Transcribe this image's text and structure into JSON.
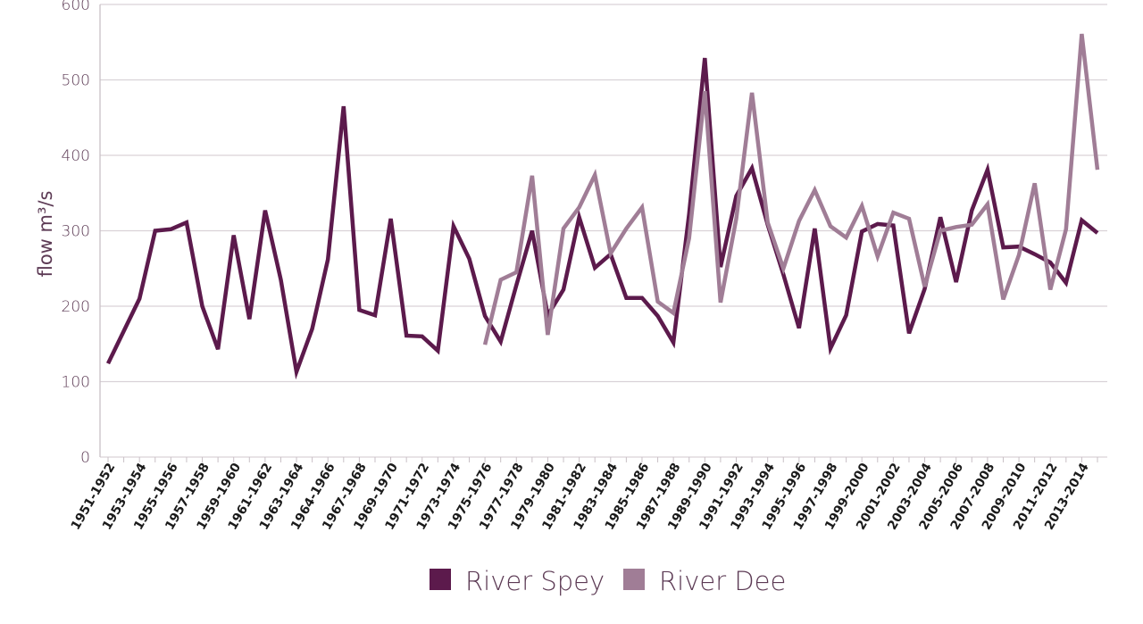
{
  "chart_data": {
    "type": "line",
    "title": "",
    "xlabel": "",
    "ylabel": "flow m³/s",
    "ylim": [
      0,
      600
    ],
    "yticks": [
      0,
      100,
      200,
      300,
      400,
      500,
      600
    ],
    "grid": "horizontal",
    "legend_position": "bottom-center",
    "x": [
      "1951-1952",
      "1952-1953",
      "1953-1954",
      "1954-1955",
      "1955-1956",
      "1956-1957",
      "1957-1958",
      "1958-1959",
      "1959-1960",
      "1960-1961",
      "1961-1962",
      "1962-1963",
      "1963-1964",
      "1964-1965",
      "1964-1966",
      "1966-1967",
      "1967-1968",
      "1968-1969",
      "1969-1970",
      "1970-1971",
      "1971-1972",
      "1972-1973",
      "1973-1974",
      "1974-1975",
      "1975-1976",
      "1976-1977",
      "1977-1978",
      "1978-1979",
      "1979-1980",
      "1980-1981",
      "1981-1982",
      "1982-1983",
      "1983-1984",
      "1984-1985",
      "1985-1986",
      "1986-1987",
      "1987-1988",
      "1988-1989",
      "1989-1990",
      "1990-1991",
      "1991-1992",
      "1992-1993",
      "1993-1994",
      "1994-1995",
      "1995-1996",
      "1996-1997",
      "1997-1998",
      "1998-1999",
      "1999-2000",
      "2000-2001",
      "2001-2002",
      "2002-2003",
      "2003-2004",
      "2004-2005",
      "2005-2006",
      "2006-2007",
      "2007-2008",
      "2008-2009",
      "2009-2010",
      "2010-2011",
      "2011-2012",
      "2012-2013",
      "2013-2014",
      "2014-2015"
    ],
    "x_tick_labels": [
      "1951-1952",
      "1953-1954",
      "1955-1956",
      "1957-1958",
      "1959-1960",
      "1961-1962",
      "1963-1964",
      "1964-1966",
      "1967-1968",
      "1969-1970",
      "1971-1972",
      "1973-1974",
      "1975-1976",
      "1977-1978",
      "1979-1980",
      "1981-1982",
      "1983-1984",
      "1985-1986",
      "1987-1988",
      "1989-1990",
      "1991-1992",
      "1993-1994",
      "1995-1996",
      "1997-1998",
      "1999-2000",
      "2001-2002",
      "2003-2004",
      "2005-2006",
      "2007-2008",
      "2009-2010",
      "2011-2012",
      "2013-2014"
    ],
    "series": [
      {
        "name": "River Spey",
        "color": "#5c1a4c",
        "values": [
          124,
          167,
          210,
          300,
          302,
          311,
          200,
          143,
          294,
          183,
          327,
          235,
          113,
          170,
          262,
          465,
          195,
          188,
          316,
          161,
          160,
          141,
          306,
          263,
          187,
          153,
          228,
          300,
          188,
          222,
          318,
          251,
          269,
          211,
          211,
          187,
          152,
          322,
          529,
          252,
          346,
          383,
          308,
          242,
          171,
          303,
          144,
          188,
          299,
          309,
          307,
          164,
          223,
          318,
          232,
          327,
          381,
          278,
          279,
          269,
          258,
          231,
          314,
          297
        ]
      },
      {
        "name": "River Dee",
        "color": "#a07d96",
        "values": [
          null,
          null,
          null,
          null,
          null,
          null,
          null,
          null,
          null,
          null,
          null,
          null,
          null,
          null,
          null,
          null,
          null,
          null,
          null,
          null,
          null,
          null,
          null,
          null,
          149,
          235,
          245,
          373,
          162,
          303,
          331,
          374,
          270,
          303,
          331,
          206,
          191,
          290,
          485,
          205,
          316,
          483,
          311,
          250,
          313,
          354,
          306,
          291,
          333,
          266,
          324,
          316,
          226,
          300,
          305,
          308,
          335,
          209,
          268,
          363,
          222,
          302,
          561,
          381
        ]
      }
    ]
  }
}
